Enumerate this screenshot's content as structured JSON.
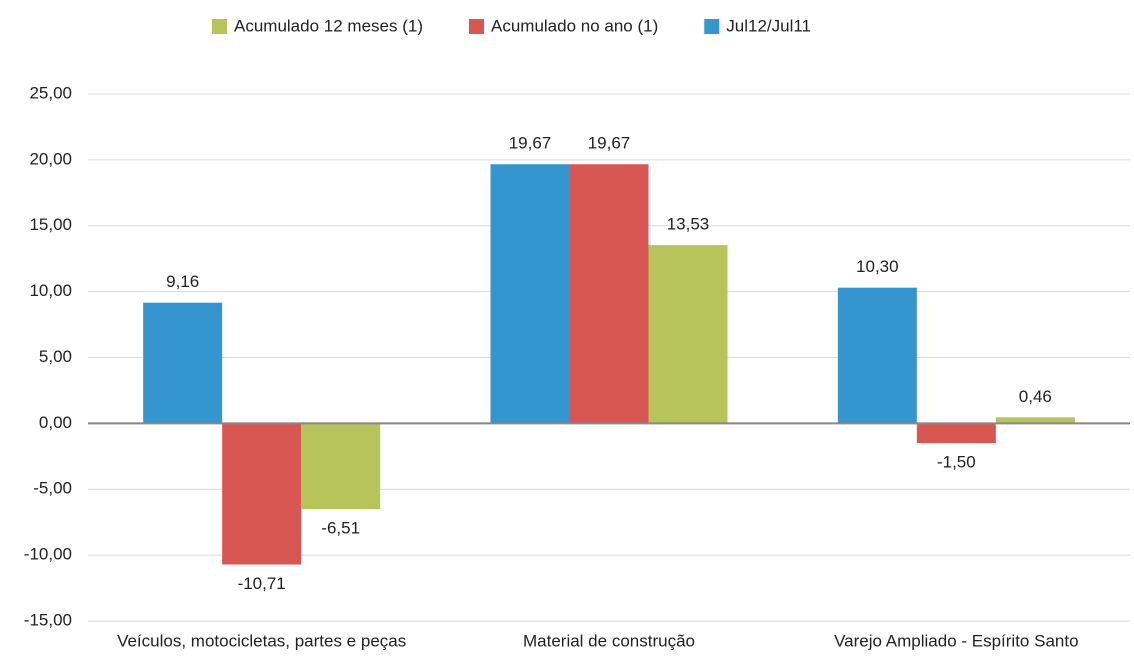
{
  "chart_data": {
    "type": "bar",
    "categories": [
      "Veículos, motocicletas, partes e peças",
      "Material de construção",
      "Varejo Ampliado - Espírito Santo"
    ],
    "series": [
      {
        "name": "Jul12/Jul11",
        "color": "#3596cf",
        "values": [
          9.16,
          19.67,
          10.3
        ],
        "value_labels": [
          "9,16",
          "19,67",
          "10,30"
        ]
      },
      {
        "name": "Acumulado no ano (1)",
        "color": "#d95752",
        "values": [
          -10.71,
          19.67,
          -1.5
        ],
        "value_labels": [
          "-10,71",
          "19,67",
          "-1,50"
        ]
      },
      {
        "name": "Acumulado 12 meses (1)",
        "color": "#b6c45a",
        "values": [
          -6.51,
          13.53,
          0.46
        ],
        "value_labels": [
          "-6,51",
          "13,53",
          "0,46"
        ]
      }
    ],
    "ylim": [
      -15,
      25
    ],
    "yticks": [
      {
        "value": -15,
        "label": "-15,00"
      },
      {
        "value": -10,
        "label": "-10,00"
      },
      {
        "value": -5,
        "label": "-5,00"
      },
      {
        "value": 0,
        "label": "0,00"
      },
      {
        "value": 5,
        "label": "5,00"
      },
      {
        "value": 10,
        "label": "10,00"
      },
      {
        "value": 15,
        "label": "15,00"
      },
      {
        "value": 20,
        "label": "20,00"
      },
      {
        "value": 25,
        "label": "25,00"
      }
    ],
    "grid": true
  }
}
